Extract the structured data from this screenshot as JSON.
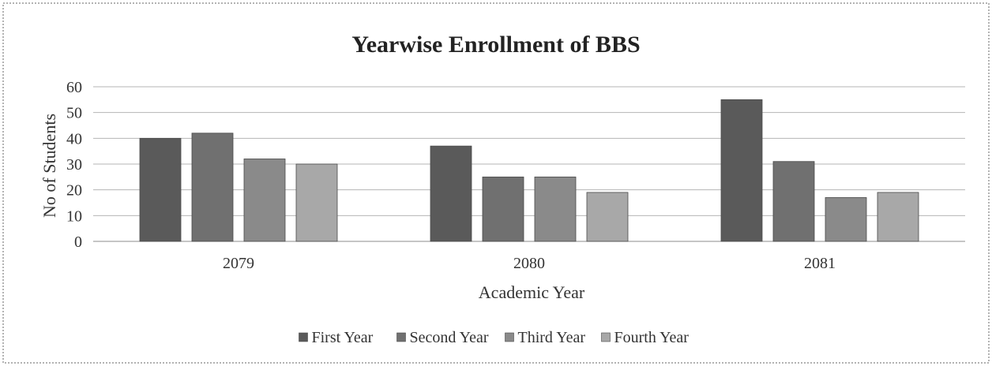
{
  "chart_data": {
    "type": "bar",
    "title": "Yearwise Enrollment of BBS",
    "xlabel": "Academic Year",
    "ylabel": "No of Students",
    "categories": [
      "2079",
      "2080",
      "2081"
    ],
    "ylim": [
      0,
      60
    ],
    "yticks": [
      0,
      10,
      20,
      30,
      40,
      50,
      60
    ],
    "grid": true,
    "legend_position": "bottom",
    "series": [
      {
        "name": "First Year",
        "values": [
          40,
          37,
          55
        ],
        "color": "#5a5a5a"
      },
      {
        "name": "Second Year",
        "values": [
          42,
          25,
          31
        ],
        "color": "#707070"
      },
      {
        "name": "Third Year",
        "values": [
          32,
          25,
          17
        ],
        "color": "#8a8a8a"
      },
      {
        "name": "Fourth Year",
        "values": [
          30,
          19,
          19
        ],
        "color": "#a8a8a8"
      }
    ]
  }
}
